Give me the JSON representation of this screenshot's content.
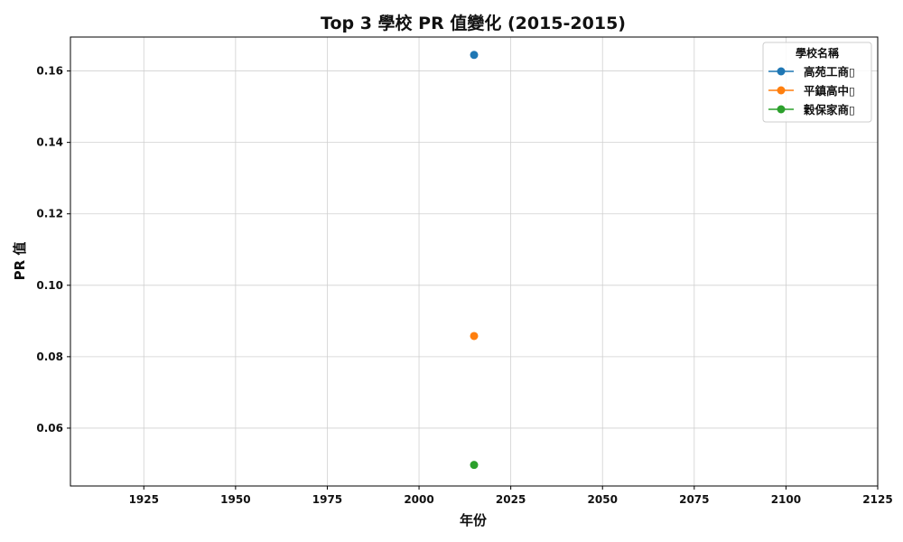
{
  "chart_data": {
    "type": "line",
    "title": "Top 3 學校 PR 值變化 (2015-2015)",
    "xlabel": "年份",
    "ylabel": "PR 值",
    "xlim": [
      1905,
      2125
    ],
    "ylim": [
      0.0438,
      0.1695
    ],
    "xticks": [
      1925,
      1950,
      1975,
      2000,
      2025,
      2050,
      2075,
      2100,
      2125
    ],
    "yticks": [
      0.06,
      0.08,
      0.1,
      0.12,
      0.14,
      0.16
    ],
    "ytick_labels": [
      "0.06",
      "0.08",
      "0.10",
      "0.12",
      "0.14",
      "0.16"
    ],
    "grid": true,
    "legend": {
      "title": "學校名稱",
      "placement": "top-right"
    },
    "series": [
      {
        "name": "高苑工商▯",
        "color": "#1f77b4",
        "x": [
          2015
        ],
        "y": [
          0.1645
        ]
      },
      {
        "name": "平鎮高中▯",
        "color": "#ff7f0e",
        "x": [
          2015
        ],
        "y": [
          0.0858
        ]
      },
      {
        "name": "穀保家商▯",
        "color": "#2ca02c",
        "x": [
          2015
        ],
        "y": [
          0.0497
        ]
      }
    ]
  }
}
